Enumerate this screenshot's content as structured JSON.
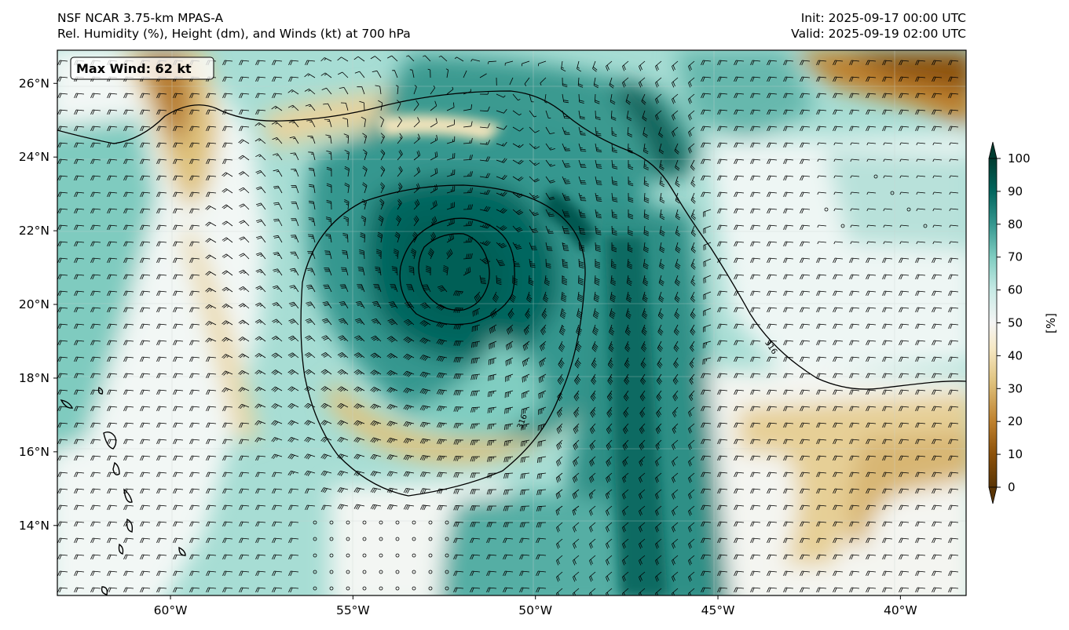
{
  "header": {
    "model": "NSF NCAR 3.75-km MPAS-A",
    "fields": "Rel. Humidity (%), Height (dm), and Winds (kt) at 700 hPa",
    "init": "Init: 2025-09-17 00:00 UTC",
    "valid": "Valid: 2025-09-19 02:00 UTC"
  },
  "annotation": {
    "max_wind": "Max Wind: 62 kt"
  },
  "map": {
    "lon_range": [
      -63.1,
      -38.2
    ],
    "lat_range": [
      12.1,
      26.9
    ],
    "lon_ticks": [
      {
        "value": -60,
        "label": "60°W"
      },
      {
        "value": -55,
        "label": "55°W"
      },
      {
        "value": -50,
        "label": "50°W"
      },
      {
        "value": -45,
        "label": "45°W"
      },
      {
        "value": -40,
        "label": "40°W"
      }
    ],
    "lat_ticks": [
      {
        "value": 26,
        "label": "26°N"
      },
      {
        "value": 24,
        "label": "24°N"
      },
      {
        "value": 22,
        "label": "22°N"
      },
      {
        "value": 20,
        "label": "20°N"
      },
      {
        "value": 18,
        "label": "18°N"
      },
      {
        "value": 16,
        "label": "16°N"
      },
      {
        "value": 14,
        "label": "14°N"
      }
    ],
    "height_contour_labels": [
      {
        "text": "316",
        "lon": -50.3,
        "lat": 16.8
      },
      {
        "text": "316",
        "lon": -43.6,
        "lat": 18.8
      }
    ]
  },
  "colorbar": {
    "label": "[%]",
    "ticks": [
      {
        "value": 0,
        "label": "0"
      },
      {
        "value": 10,
        "label": "10"
      },
      {
        "value": 20,
        "label": "20"
      },
      {
        "value": 30,
        "label": "30"
      },
      {
        "value": 40,
        "label": "40"
      },
      {
        "value": 50,
        "label": "50"
      },
      {
        "value": 60,
        "label": "60"
      },
      {
        "value": 70,
        "label": "70"
      },
      {
        "value": 80,
        "label": "80"
      },
      {
        "value": 90,
        "label": "90"
      },
      {
        "value": 100,
        "label": "100"
      }
    ],
    "colors": [
      "#5a3505",
      "#8c510a",
      "#bf812d",
      "#dfc27d",
      "#f6e8c3",
      "#f5f5f5",
      "#c7eae5",
      "#80cdc1",
      "#35978f",
      "#01665e",
      "#003c30"
    ]
  }
}
